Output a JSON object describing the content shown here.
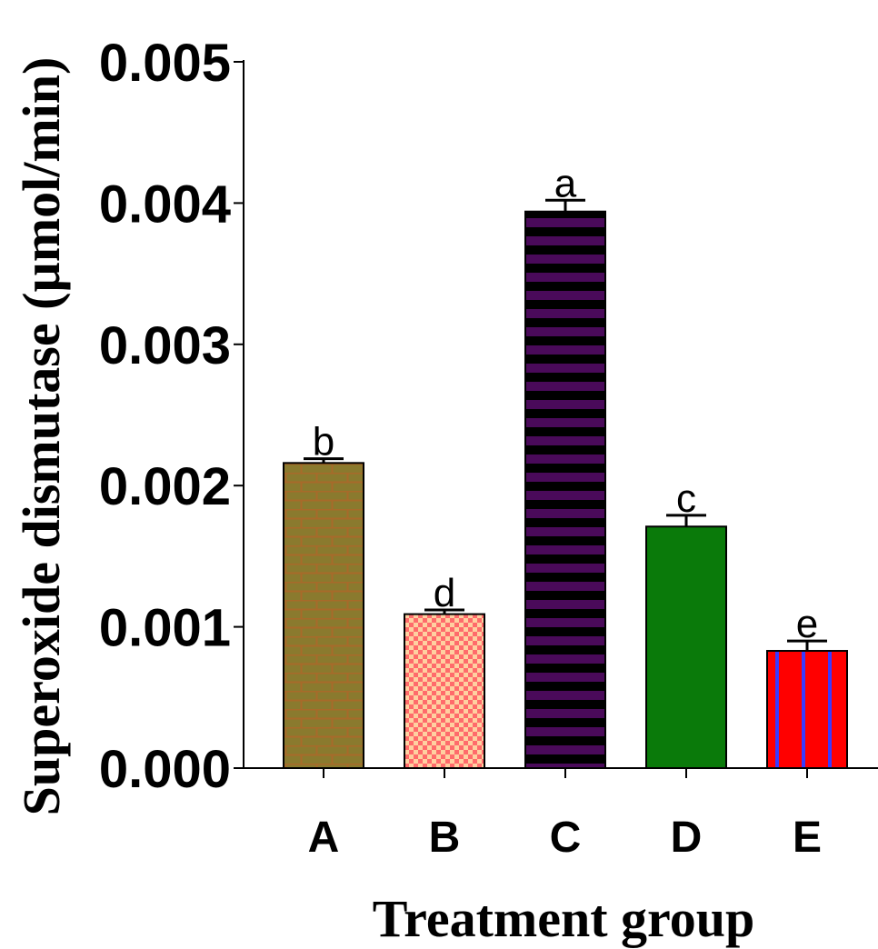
{
  "chart_data": {
    "type": "bar",
    "title": "",
    "xlabel": "Treatment group",
    "ylabel": "Superoxide dismutase (µmol/min)",
    "ylim": [
      0,
      0.005
    ],
    "yticks": [
      "0.000",
      "0.001",
      "0.002",
      "0.003",
      "0.004",
      "0.005"
    ],
    "categories": [
      "A",
      "B",
      "C",
      "D",
      "E"
    ],
    "values": [
      0.00216,
      0.00109,
      0.00394,
      0.00171,
      0.00083
    ],
    "errors": [
      3e-05,
      3e-05,
      8e-05,
      8e-05,
      7e-05
    ],
    "significance": [
      "b",
      "d",
      "a",
      "c",
      "e"
    ],
    "colors": [
      "#8a7a2e",
      "#ff6b6b",
      "#4a0a5a",
      "#0a7a0a",
      "#ff0000"
    ],
    "patterns": [
      "brick",
      "checker",
      "horizontal-stripes",
      "solid",
      "vertical-stripes"
    ],
    "pattern_colors": [
      "#a86a2a",
      "#ffd0a0",
      "#000000",
      "#0a7a0a",
      "#3a3aff"
    ],
    "grid": false,
    "legend": "none"
  }
}
